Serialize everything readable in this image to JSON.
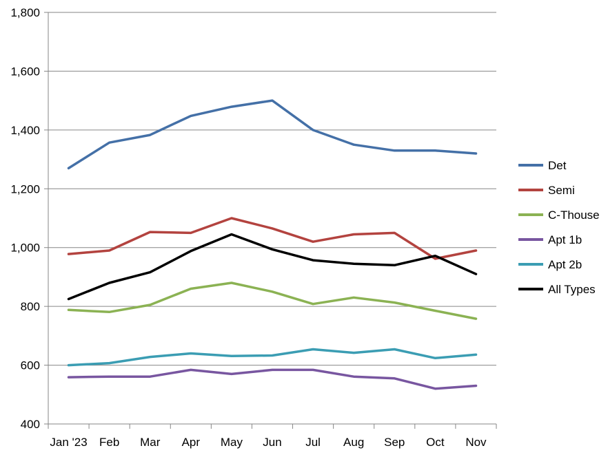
{
  "chart_data": {
    "type": "line",
    "title": "",
    "xlabel": "",
    "ylabel": "",
    "categories": [
      "Jan '23",
      "Feb",
      "Mar",
      "Apr",
      "May",
      "Jun",
      "Jul",
      "Aug",
      "Sep",
      "Oct",
      "Nov"
    ],
    "ylim": [
      400,
      1800
    ],
    "yticks": [
      "400",
      "600",
      "800",
      "1,000",
      "1,200",
      "1,400",
      "1,600",
      "1,800"
    ],
    "grid": "horizontal",
    "legend_position": "right",
    "series": [
      {
        "name": "Det",
        "color": "#4470A7",
        "values": [
          1270,
          1357,
          1383,
          1448,
          1479,
          1500,
          1400,
          1350,
          1330,
          1330,
          1320
        ]
      },
      {
        "name": "Semi",
        "color": "#B3433F",
        "values": [
          978,
          990,
          1053,
          1050,
          1100,
          1065,
          1020,
          1045,
          1050,
          962,
          990
        ]
      },
      {
        "name": "C-Thouse",
        "color": "#8BB253",
        "values": [
          788,
          781,
          805,
          860,
          880,
          850,
          808,
          830,
          813,
          785,
          758
        ]
      },
      {
        "name": "Apt 1b",
        "color": "#7856A0",
        "values": [
          559,
          561,
          561,
          584,
          570,
          584,
          584,
          561,
          555,
          520,
          530
        ]
      },
      {
        "name": "Apt 2b",
        "color": "#3B9DB3",
        "values": [
          600,
          607,
          628,
          640,
          631,
          633,
          654,
          642,
          654,
          624,
          636
        ]
      },
      {
        "name": "All Types",
        "color": "#000000",
        "values": [
          825,
          880,
          916,
          988,
          1045,
          994,
          957,
          945,
          940,
          972,
          910
        ]
      }
    ]
  }
}
